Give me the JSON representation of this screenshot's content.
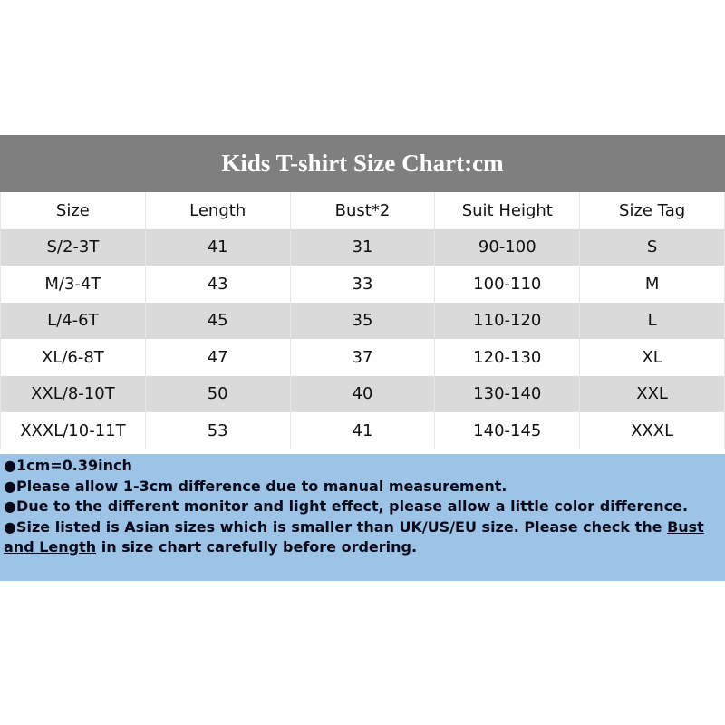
{
  "title": "Kids T-shirt Size Chart:cm",
  "columns": [
    "Size",
    "Length",
    "Bust*2",
    "Suit Height",
    "Size Tag"
  ],
  "rows": [
    [
      "S/2-3T",
      "41",
      "31",
      "90-100",
      "S"
    ],
    [
      "M/3-4T",
      "43",
      "33",
      "100-110",
      "M"
    ],
    [
      "L/4-6T",
      "45",
      "35",
      "110-120",
      "L"
    ],
    [
      "XL/6-8T",
      "47",
      "37",
      "120-130",
      "XL"
    ],
    [
      "XXL/8-10T",
      "50",
      "40",
      "130-140",
      "XXL"
    ],
    [
      "XXXL/10-11T",
      "53",
      "41",
      "140-145",
      "XXXL"
    ]
  ],
  "notes": {
    "n1": "●1cm=0.39inch",
    "n2": "●Please allow 1-3cm difference due to manual measurement.",
    "n3": "●Due to the different monitor and light effect, please allow a little color difference.",
    "n4_pre": "●Size listed is Asian sizes which is smaller than UK/US/EU size. Please check the ",
    "n4_underline": "Bust and Length",
    "n4_post": " in size chart carefully before ordering."
  },
  "colors": {
    "title_bg": "#7f7f7f",
    "alt_row": "#dadada",
    "notes_bg": "#9dc3e6"
  }
}
